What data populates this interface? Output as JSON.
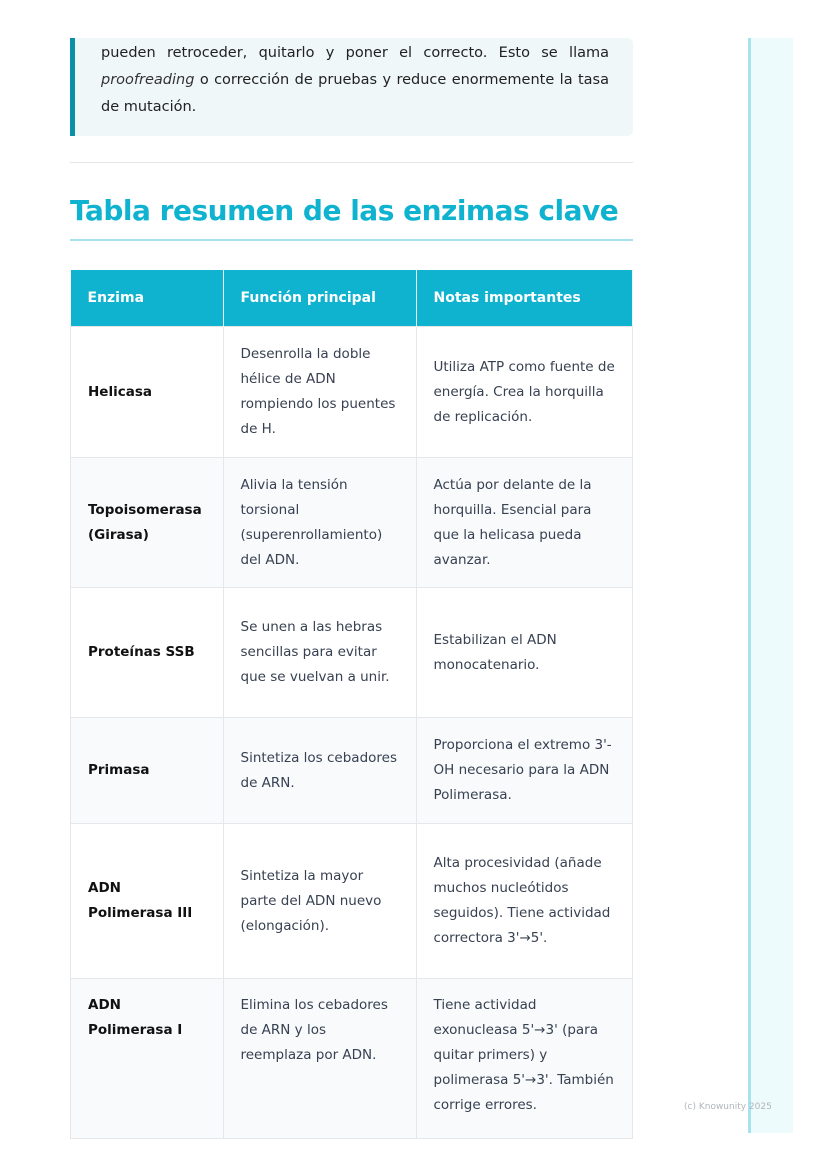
{
  "quote": {
    "line1": "pueden retroceder, quitarlo y poner el correcto. Esto se llama",
    "italic": "proofreading",
    "rest": " o corrección de pruebas y reduce enormemente la tasa de mutación."
  },
  "heading": "Tabla resumen de las enzimas clave",
  "table": {
    "headers": [
      "Enzima",
      "Función principal",
      "Notas importantes"
    ],
    "rows": [
      [
        "Helicasa",
        "Desenrolla la doble hélice de ADN rompiendo los puentes de H.",
        "Utiliza ATP como fuente de energía. Crea la horquilla de replicación."
      ],
      [
        "Topoisomerasa (Girasa)",
        "Alivia la tensión torsional (superenrollamiento) del ADN.",
        "Actúa por delante de la horquilla. Esencial para que la helicasa pueda avanzar."
      ],
      [
        "Proteínas SSB",
        "Se unen a las hebras sencillas para evitar que se vuelvan a unir.",
        "Estabilizan el ADN monocatenario."
      ],
      [
        "Primasa",
        "Sintetiza los cebadores de ARN.",
        "Proporciona el extremo 3'-OH necesario para la ADN Polimerasa."
      ],
      [
        "ADN Polimerasa III",
        "Sintetiza la mayor parte del ADN nuevo (elongación).",
        "Alta procesividad (añade muchos nucleótidos seguidos). Tiene actividad correctora 3'→5'."
      ],
      [
        "ADN Polimerasa I",
        "Elimina los cebadores de ARN y los reemplaza por ADN.",
        "Tiene actividad exonucleasa 5'→3' (para quitar primers) y polimerasa 5'→3'. También corrige errores."
      ]
    ]
  },
  "footer": "(c) Knowunity 2025",
  "colors": {
    "accent": "#0fb3cf",
    "quote_border": "#0e8fa8",
    "side_panel": "#eefbfd"
  }
}
